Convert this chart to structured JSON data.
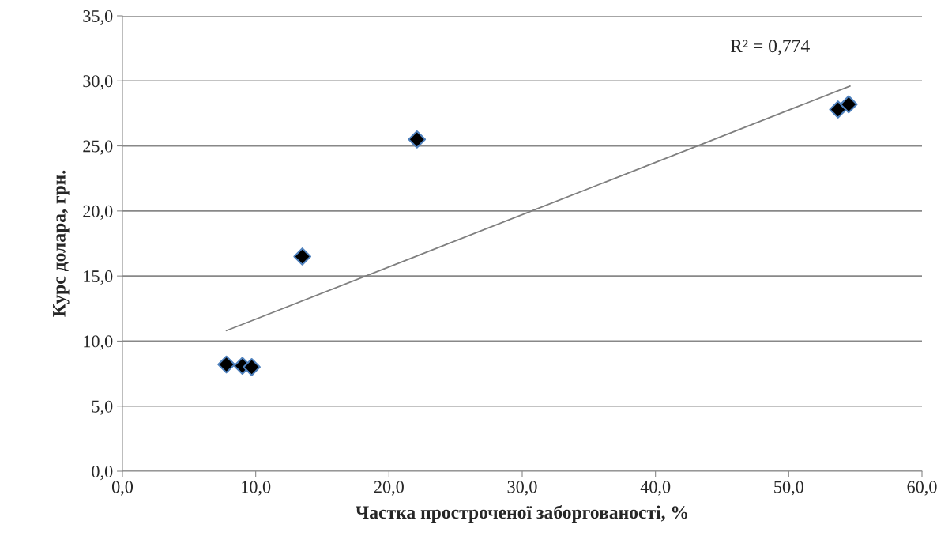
{
  "chart_data": {
    "type": "scatter",
    "xlabel": "Частка простроченої заборгованості, %",
    "ylabel": "Курс долара, грн.",
    "annotations": [
      "R² = 0,774"
    ],
    "xlim": [
      0,
      60
    ],
    "ylim": [
      0,
      35
    ],
    "xticks": [
      {
        "value": 0,
        "label": "0,0"
      },
      {
        "value": 10,
        "label": "10,0"
      },
      {
        "value": 20,
        "label": "20,0"
      },
      {
        "value": 30,
        "label": "30,0"
      },
      {
        "value": 40,
        "label": "40,0"
      },
      {
        "value": 50,
        "label": "50,0"
      },
      {
        "value": 60,
        "label": "60,0"
      }
    ],
    "yticks": [
      {
        "value": 0,
        "label": "0,0"
      },
      {
        "value": 5,
        "label": "5,0"
      },
      {
        "value": 10,
        "label": "10,0"
      },
      {
        "value": 15,
        "label": "15,0"
      },
      {
        "value": 20,
        "label": "20,0"
      },
      {
        "value": 25,
        "label": "25,0"
      },
      {
        "value": 30,
        "label": "30,0"
      },
      {
        "value": 35,
        "label": "35,0"
      }
    ],
    "grid": "y",
    "legend": false,
    "series": [
      {
        "marker": "diamond",
        "color": "#000000",
        "x": [
          7.8,
          9.0,
          9.7,
          13.5,
          22.1,
          53.7,
          54.5
        ],
        "values": [
          8.2,
          8.1,
          8.0,
          16.5,
          25.5,
          27.8,
          28.2
        ]
      },
      {
        "type": "line",
        "marker": "none",
        "color": "#7f7f7f",
        "x": [
          7.8,
          54.6
        ],
        "values": [
          10.8,
          29.6
        ]
      }
    ]
  }
}
